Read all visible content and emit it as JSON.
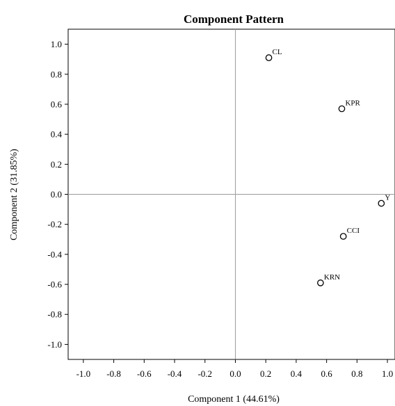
{
  "chart_data": {
    "type": "scatter",
    "title": "Component Pattern",
    "xlabel": "Component 1 (44.61%)",
    "ylabel": "Component 2 (31.85%)",
    "xlim": [
      -1.1,
      1.05
    ],
    "ylim": [
      -1.1,
      1.1
    ],
    "xticks": [
      "-1.0",
      "-0.8",
      "-0.6",
      "-0.4",
      "-0.2",
      "0.0",
      "0.2",
      "0.4",
      "0.6",
      "0.8",
      "1.0"
    ],
    "yticks": [
      "1.0",
      "0.8",
      "0.6",
      "0.4",
      "0.2",
      "0.0",
      "-0.2",
      "-0.4",
      "-0.6",
      "-0.8",
      "-1.0"
    ],
    "reference_lines": {
      "x": 0,
      "y": 0
    },
    "grid": false,
    "points": [
      {
        "label": "CL",
        "x": 0.22,
        "y": 0.91
      },
      {
        "label": "KPR",
        "x": 0.7,
        "y": 0.57
      },
      {
        "label": "Y",
        "x": 0.96,
        "y": -0.06
      },
      {
        "label": "CCI",
        "x": 0.71,
        "y": -0.28
      },
      {
        "label": "KRN",
        "x": 0.56,
        "y": -0.59
      }
    ],
    "colors": {
      "axis": "#000000",
      "reference": "#9a9a9a",
      "marker": "#000000"
    }
  }
}
